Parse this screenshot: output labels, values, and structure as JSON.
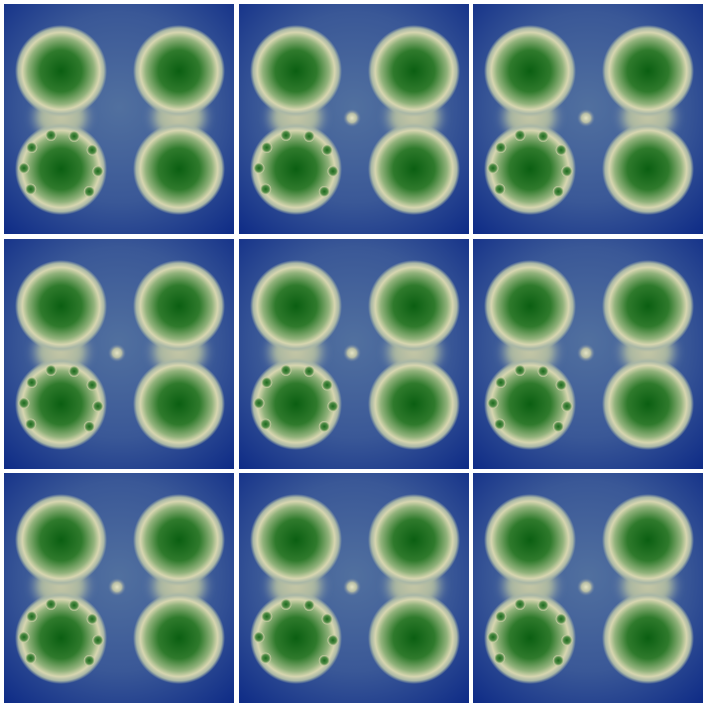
{
  "figure": {
    "rows": 3,
    "columns": 3,
    "background_color": "#ffffff",
    "colormap": {
      "low": "#0d2a86",
      "mid_low": "#51709f",
      "mid": "#d7d6b0",
      "mid_high": "#91b27b",
      "high": "#0b5f12"
    },
    "panels": [
      {
        "row": 1,
        "col": 1,
        "center_spot": false,
        "bottom_left_bump_count": 8
      },
      {
        "row": 1,
        "col": 2,
        "center_spot": true,
        "bottom_left_bump_count": 8
      },
      {
        "row": 1,
        "col": 3,
        "center_spot": true,
        "bottom_left_bump_count": 8
      },
      {
        "row": 2,
        "col": 1,
        "center_spot": true,
        "bottom_left_bump_count": 8
      },
      {
        "row": 2,
        "col": 2,
        "center_spot": true,
        "bottom_left_bump_count": 8
      },
      {
        "row": 2,
        "col": 3,
        "center_spot": true,
        "bottom_left_bump_count": 8
      },
      {
        "row": 3,
        "col": 1,
        "center_spot": true,
        "bottom_left_bump_count": 8
      },
      {
        "row": 3,
        "col": 2,
        "center_spot": true,
        "bottom_left_bump_count": 8
      },
      {
        "row": 3,
        "col": 3,
        "center_spot": true,
        "bottom_left_bump_count": 8
      }
    ]
  }
}
